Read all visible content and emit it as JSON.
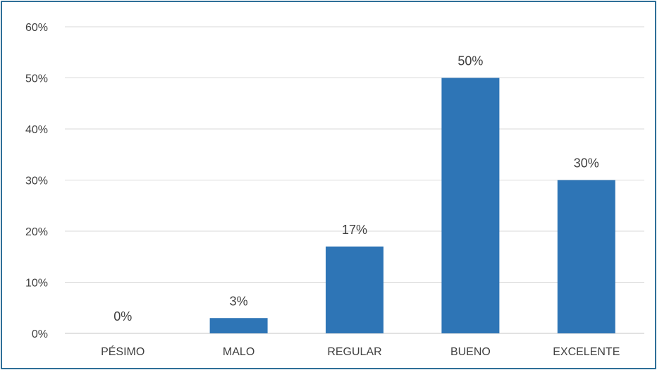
{
  "chart_data": {
    "type": "bar",
    "title": "",
    "xlabel": "",
    "ylabel": "",
    "categories": [
      "PÉSIMO",
      "MALO",
      "REGULAR",
      "BUENO",
      "EXCELENTE"
    ],
    "values": [
      0,
      3,
      17,
      50,
      30
    ],
    "data_labels": [
      "0%",
      "3%",
      "17%",
      "50%",
      "30%"
    ],
    "ylim": [
      0,
      60
    ],
    "yticks": [
      0,
      10,
      20,
      30,
      40,
      50,
      60
    ],
    "ytick_labels": [
      "0%",
      "10%",
      "20%",
      "30%",
      "40%",
      "50%",
      "60%"
    ],
    "grid": true,
    "legend": "none",
    "colors": {
      "bar": "#2e75b6",
      "frame": "#2e6f98",
      "grid": "#d9d9d9",
      "text": "#404040"
    }
  }
}
